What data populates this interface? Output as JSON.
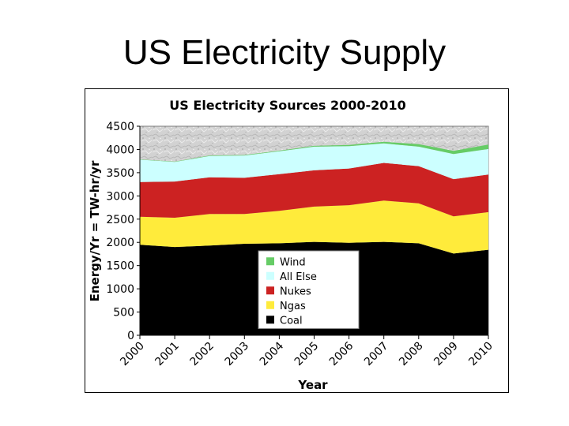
{
  "slide": {
    "title": "US Electricity Supply"
  },
  "colors": {
    "Coal": "#000000",
    "Ngas": "#ffeb3b",
    "Nukes": "#cc2222",
    "All Else": "#ccffff",
    "Wind": "#66cc66",
    "plot_background": "#d4d4d4"
  },
  "chart_data": {
    "type": "area",
    "stacked": true,
    "title": "US Electricity Sources 2000-2010",
    "xlabel": "Year",
    "ylabel": "Energy/Yr = TW-hr/yr",
    "ylim": [
      0,
      4500
    ],
    "yticks": [
      0,
      500,
      1000,
      1500,
      2000,
      2500,
      3000,
      3500,
      4000,
      4500
    ],
    "x": [
      "2000",
      "2001",
      "2002",
      "2003",
      "2004",
      "2005",
      "2006",
      "2007",
      "2008",
      "2009",
      "2010"
    ],
    "series": [
      {
        "name": "Coal",
        "values": [
          1950,
          1900,
          1930,
          1970,
          1980,
          2010,
          1990,
          2010,
          1980,
          1760,
          1840
        ]
      },
      {
        "name": "Ngas",
        "values": [
          600,
          630,
          680,
          640,
          700,
          760,
          810,
          890,
          860,
          800,
          810
        ]
      },
      {
        "name": "Nukes",
        "values": [
          750,
          780,
          790,
          780,
          790,
          780,
          790,
          810,
          800,
          800,
          810
        ]
      },
      {
        "name": "All Else",
        "values": [
          480,
          420,
          460,
          480,
          490,
          510,
          480,
          420,
          420,
          540,
          550
        ]
      },
      {
        "name": "Wind",
        "values": [
          6,
          7,
          10,
          11,
          14,
          18,
          26,
          34,
          55,
          70,
          95
        ]
      }
    ],
    "legend": {
      "placement": "inside-bottom-center",
      "order": [
        "Wind",
        "All Else",
        "Nukes",
        "Ngas",
        "Coal"
      ]
    },
    "grid": false
  }
}
